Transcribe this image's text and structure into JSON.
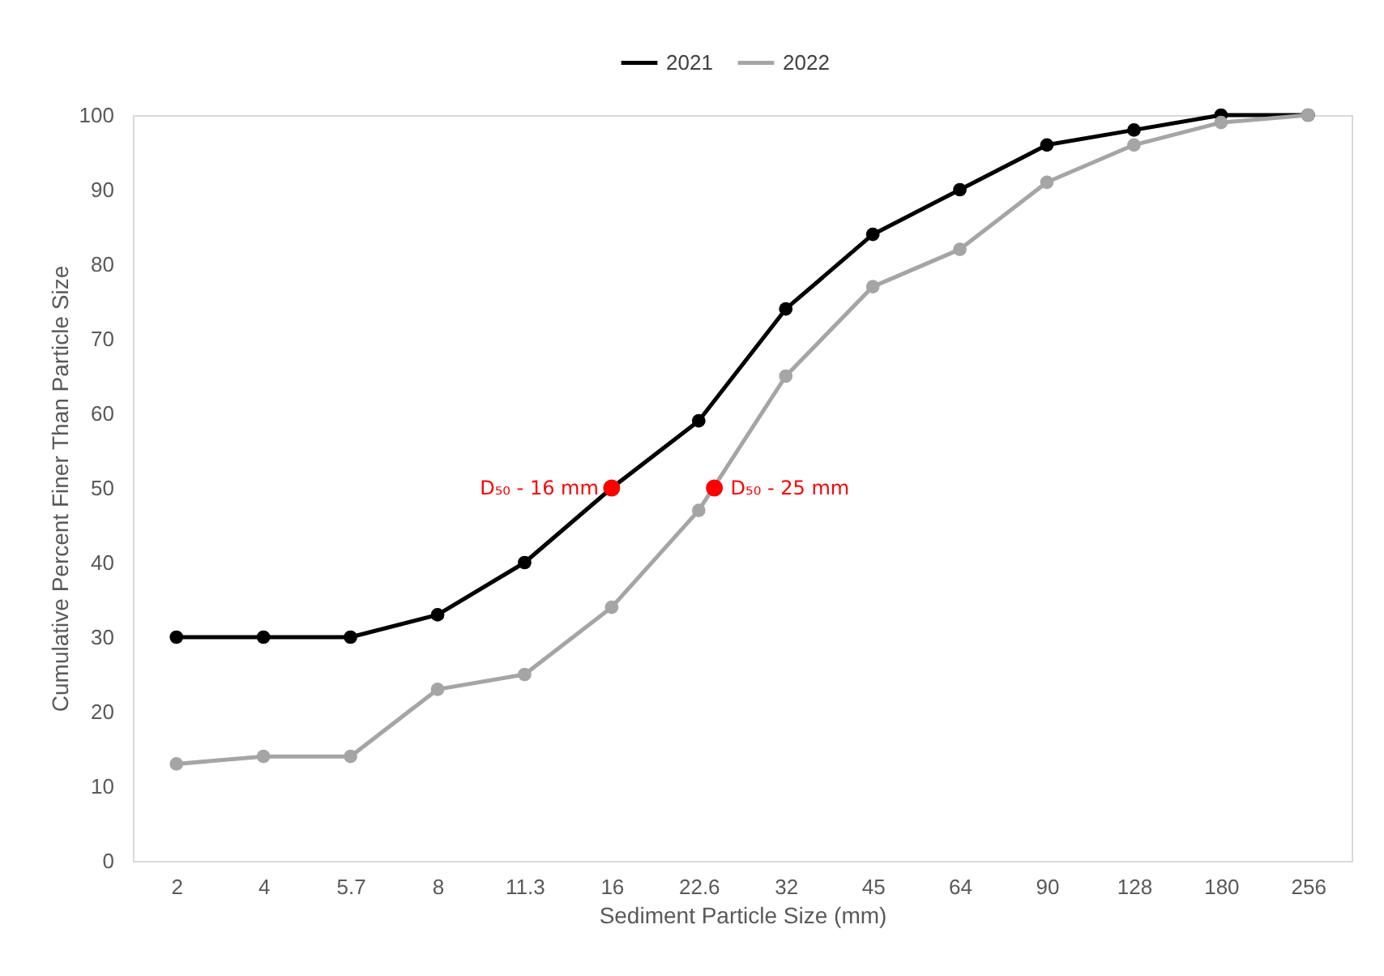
{
  "chart_data": {
    "type": "line",
    "xlabel": "Sediment Particle Size (mm)",
    "ylabel": "Cumulative Percent Finer Than Particle Size",
    "categories": [
      "2",
      "4",
      "5.7",
      "8",
      "11.3",
      "16",
      "22.6",
      "32",
      "45",
      "64",
      "90",
      "128",
      "180",
      "256"
    ],
    "series": [
      {
        "name": "2021",
        "color": "#000000",
        "values": [
          30,
          30,
          30,
          33,
          40,
          50,
          59,
          74,
          84,
          90,
          96,
          98,
          100,
          100
        ]
      },
      {
        "name": "2022",
        "color": "#a5a5a5",
        "values": [
          13,
          14,
          14,
          23,
          25,
          34,
          47,
          65,
          77,
          82,
          91,
          96,
          99,
          100
        ]
      },
      {
        "type": "scatter",
        "color": "#ff0000",
        "x": [
          "16",
          "22.6"
        ],
        "values": [
          50,
          50
        ]
      }
    ],
    "annotations": [
      {
        "text": "D₅₀ - 16 mm",
        "x": "16",
        "y": 50
      },
      {
        "text": "D₅₀ - 25 mm",
        "x": "22.6",
        "y": 50
      }
    ],
    "ylim": [
      0,
      100
    ],
    "yticks": [
      0,
      10,
      20,
      30,
      40,
      50,
      60,
      70,
      80,
      90,
      100
    ],
    "legend": "top",
    "marker": "circle",
    "line_style": "solid"
  }
}
